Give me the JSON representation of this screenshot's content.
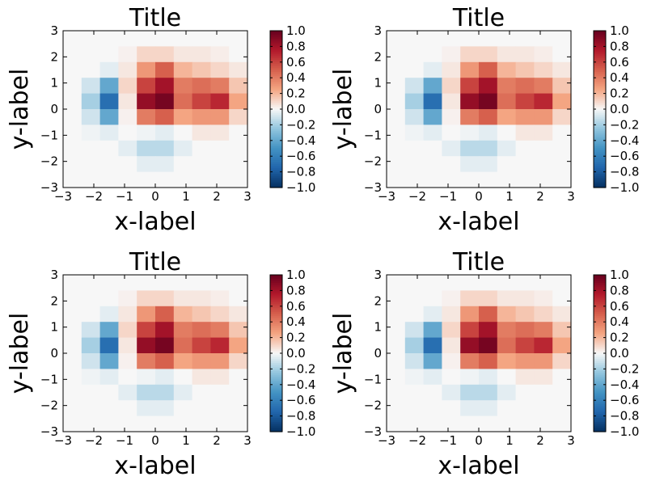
{
  "chart_data": [
    {
      "type": "heatmap",
      "title": "Title",
      "xlabel": "x-label",
      "ylabel": "y-label",
      "xlim": [
        -3,
        3
      ],
      "ylim": [
        -3,
        3
      ],
      "xticks": [
        "−3",
        "−2",
        "−1",
        "0",
        "1",
        "2",
        "3"
      ],
      "yticks": [
        "−3",
        "−2",
        "−1",
        "0",
        "1",
        "2",
        "3"
      ],
      "grid_rows": 10,
      "grid_cols": 10,
      "values": [
        [
          0.0,
          0.0,
          0.0,
          0.0,
          0.0,
          0.0,
          0.0,
          0.0,
          0.0,
          0.0
        ],
        [
          0.0,
          0.0,
          0.0,
          0.02,
          0.1,
          0.1,
          0.05,
          0.05,
          0.03,
          0.0
        ],
        [
          0.0,
          0.0,
          -0.05,
          0.05,
          0.3,
          0.5,
          0.2,
          0.15,
          0.1,
          0.05
        ],
        [
          0.0,
          -0.1,
          -0.4,
          0.1,
          0.6,
          0.8,
          0.4,
          0.45,
          0.4,
          0.15
        ],
        [
          0.0,
          -0.2,
          -0.7,
          0.05,
          0.85,
          0.95,
          0.45,
          0.6,
          0.7,
          0.25
        ],
        [
          0.0,
          -0.1,
          -0.4,
          0.02,
          0.4,
          0.5,
          0.25,
          0.3,
          0.3,
          0.1
        ],
        [
          0.0,
          -0.02,
          -0.05,
          0.0,
          -0.02,
          -0.05,
          0.0,
          0.05,
          0.05,
          0.0
        ],
        [
          0.0,
          0.0,
          0.0,
          -0.05,
          -0.15,
          -0.15,
          -0.05,
          0.0,
          0.0,
          0.0
        ],
        [
          0.0,
          0.0,
          0.0,
          0.0,
          -0.05,
          -0.05,
          0.0,
          0.0,
          0.0,
          0.0
        ],
        [
          0.0,
          0.0,
          0.0,
          0.0,
          0.0,
          0.0,
          0.0,
          0.0,
          0.0,
          0.0
        ]
      ],
      "colorbar": {
        "colormap": "RdBu_r",
        "range": [
          -1.0,
          1.0
        ],
        "ticks": [
          "−1.0",
          "−0.8",
          "−0.6",
          "−0.4",
          "−0.2",
          "0.0",
          "0.2",
          "0.4",
          "0.6",
          "0.8",
          "1.0"
        ]
      }
    },
    {
      "type": "heatmap",
      "title": "Title",
      "xlabel": "x-label",
      "ylabel": "y-label",
      "xlim": [
        -3,
        3
      ],
      "ylim": [
        -3,
        3
      ],
      "xticks": [
        "−3",
        "−2",
        "−1",
        "0",
        "1",
        "2",
        "3"
      ],
      "yticks": [
        "−3",
        "−2",
        "−1",
        "0",
        "1",
        "2",
        "3"
      ],
      "grid_rows": 10,
      "grid_cols": 10,
      "values": [
        [
          0.0,
          0.0,
          0.0,
          0.0,
          0.0,
          0.0,
          0.0,
          0.0,
          0.0,
          0.0
        ],
        [
          0.0,
          0.0,
          0.0,
          0.02,
          0.1,
          0.1,
          0.05,
          0.05,
          0.03,
          0.0
        ],
        [
          0.0,
          0.0,
          -0.05,
          0.05,
          0.3,
          0.5,
          0.2,
          0.15,
          0.1,
          0.05
        ],
        [
          0.0,
          -0.1,
          -0.4,
          0.1,
          0.6,
          0.8,
          0.4,
          0.45,
          0.4,
          0.15
        ],
        [
          0.0,
          -0.2,
          -0.7,
          0.05,
          0.85,
          0.95,
          0.45,
          0.6,
          0.7,
          0.25
        ],
        [
          0.0,
          -0.1,
          -0.4,
          0.02,
          0.4,
          0.5,
          0.25,
          0.3,
          0.3,
          0.1
        ],
        [
          0.0,
          -0.02,
          -0.05,
          0.0,
          -0.02,
          -0.05,
          0.0,
          0.05,
          0.05,
          0.0
        ],
        [
          0.0,
          0.0,
          0.0,
          -0.05,
          -0.15,
          -0.15,
          -0.05,
          0.0,
          0.0,
          0.0
        ],
        [
          0.0,
          0.0,
          0.0,
          0.0,
          -0.05,
          -0.05,
          0.0,
          0.0,
          0.0,
          0.0
        ],
        [
          0.0,
          0.0,
          0.0,
          0.0,
          0.0,
          0.0,
          0.0,
          0.0,
          0.0,
          0.0
        ]
      ],
      "colorbar": {
        "colormap": "RdBu_r",
        "range": [
          -1.0,
          1.0
        ],
        "ticks": [
          "−1.0",
          "−0.8",
          "−0.6",
          "−0.4",
          "−0.2",
          "0.0",
          "0.2",
          "0.4",
          "0.6",
          "0.8",
          "1.0"
        ]
      }
    },
    {
      "type": "heatmap",
      "title": "Title",
      "xlabel": "x-label",
      "ylabel": "y-label",
      "xlim": [
        -3,
        3
      ],
      "ylim": [
        -3,
        3
      ],
      "xticks": [
        "−3",
        "−2",
        "−1",
        "0",
        "1",
        "2",
        "3"
      ],
      "yticks": [
        "−3",
        "−2",
        "−1",
        "0",
        "1",
        "2",
        "3"
      ],
      "grid_rows": 10,
      "grid_cols": 10,
      "values": [
        [
          0.0,
          0.0,
          0.0,
          0.0,
          0.0,
          0.0,
          0.0,
          0.0,
          0.0,
          0.0
        ],
        [
          0.0,
          0.0,
          0.0,
          0.02,
          0.1,
          0.1,
          0.05,
          0.05,
          0.03,
          0.0
        ],
        [
          0.0,
          0.0,
          -0.05,
          0.05,
          0.3,
          0.5,
          0.2,
          0.15,
          0.1,
          0.05
        ],
        [
          0.0,
          -0.1,
          -0.4,
          0.1,
          0.6,
          0.8,
          0.4,
          0.45,
          0.4,
          0.15
        ],
        [
          0.0,
          -0.2,
          -0.7,
          0.05,
          0.85,
          0.95,
          0.45,
          0.6,
          0.7,
          0.25
        ],
        [
          0.0,
          -0.1,
          -0.4,
          0.02,
          0.4,
          0.5,
          0.25,
          0.3,
          0.3,
          0.1
        ],
        [
          0.0,
          -0.02,
          -0.05,
          0.0,
          -0.02,
          -0.05,
          0.0,
          0.05,
          0.05,
          0.0
        ],
        [
          0.0,
          0.0,
          0.0,
          -0.05,
          -0.15,
          -0.15,
          -0.05,
          0.0,
          0.0,
          0.0
        ],
        [
          0.0,
          0.0,
          0.0,
          0.0,
          -0.05,
          -0.05,
          0.0,
          0.0,
          0.0,
          0.0
        ],
        [
          0.0,
          0.0,
          0.0,
          0.0,
          0.0,
          0.0,
          0.0,
          0.0,
          0.0,
          0.0
        ]
      ],
      "colorbar": {
        "colormap": "RdBu_r",
        "range": [
          -1.0,
          1.0
        ],
        "ticks": [
          "−1.0",
          "−0.8",
          "−0.6",
          "−0.4",
          "−0.2",
          "0.0",
          "0.2",
          "0.4",
          "0.6",
          "0.8",
          "1.0"
        ]
      }
    },
    {
      "type": "heatmap",
      "title": "Title",
      "xlabel": "x-label",
      "ylabel": "y-label",
      "xlim": [
        -3,
        3
      ],
      "ylim": [
        -3,
        3
      ],
      "xticks": [
        "−3",
        "−2",
        "−1",
        "0",
        "1",
        "2",
        "3"
      ],
      "yticks": [
        "−3",
        "−2",
        "−1",
        "0",
        "1",
        "2",
        "3"
      ],
      "grid_rows": 10,
      "grid_cols": 10,
      "values": [
        [
          0.0,
          0.0,
          0.0,
          0.0,
          0.0,
          0.0,
          0.0,
          0.0,
          0.0,
          0.0
        ],
        [
          0.0,
          0.0,
          0.0,
          0.02,
          0.1,
          0.1,
          0.05,
          0.05,
          0.03,
          0.0
        ],
        [
          0.0,
          0.0,
          -0.05,
          0.05,
          0.3,
          0.5,
          0.2,
          0.15,
          0.1,
          0.05
        ],
        [
          0.0,
          -0.1,
          -0.4,
          0.1,
          0.6,
          0.8,
          0.4,
          0.45,
          0.4,
          0.15
        ],
        [
          0.0,
          -0.2,
          -0.7,
          0.05,
          0.85,
          0.95,
          0.45,
          0.6,
          0.7,
          0.25
        ],
        [
          0.0,
          -0.1,
          -0.4,
          0.02,
          0.4,
          0.5,
          0.25,
          0.3,
          0.3,
          0.1
        ],
        [
          0.0,
          -0.02,
          -0.05,
          0.0,
          -0.02,
          -0.05,
          0.0,
          0.05,
          0.05,
          0.0
        ],
        [
          0.0,
          0.0,
          0.0,
          -0.05,
          -0.15,
          -0.15,
          -0.05,
          0.0,
          0.0,
          0.0
        ],
        [
          0.0,
          0.0,
          0.0,
          0.0,
          -0.05,
          -0.05,
          0.0,
          0.0,
          0.0,
          0.0
        ],
        [
          0.0,
          0.0,
          0.0,
          0.0,
          0.0,
          0.0,
          0.0,
          0.0,
          0.0,
          0.0
        ]
      ],
      "colorbar": {
        "colormap": "RdBu_r",
        "range": [
          -1.0,
          1.0
        ],
        "ticks": [
          "−1.0",
          "−0.8",
          "−0.6",
          "−0.4",
          "−0.2",
          "0.0",
          "0.2",
          "0.4",
          "0.6",
          "0.8",
          "1.0"
        ]
      }
    }
  ]
}
